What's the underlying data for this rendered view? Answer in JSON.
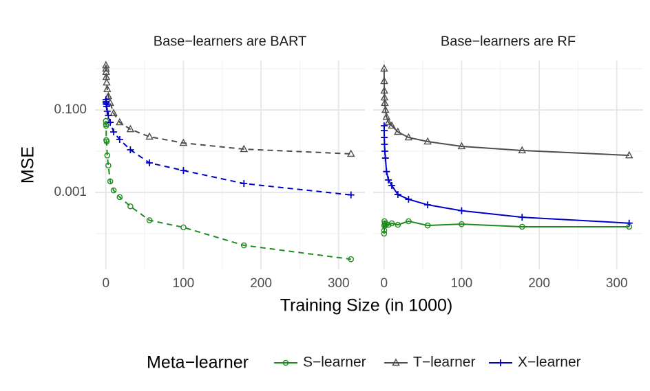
{
  "chart_data": {
    "type": "line",
    "y_label": "MSE",
    "x_label": "Training Size (in 1000)",
    "legend_title": "Meta−learner",
    "legend_position": "bottom",
    "ylog": true,
    "grid": true,
    "ylim": [
      1.36e-05,
      1.585
    ],
    "yticks": [
      {
        "value": 0.1,
        "label": "0.100"
      },
      {
        "value": 0.001,
        "label": "0.001"
      }
    ],
    "y_minor_ticks": [
      1,
      0.01,
      0.0001
    ],
    "xlim": [
      -14,
      334
    ],
    "xticks": [
      0,
      100,
      200,
      300
    ],
    "x_minor_ticks": [
      50,
      150,
      250
    ],
    "x": [
      0.1,
      0.18,
      0.32,
      0.56,
      1,
      1.78,
      3.16,
      5.62,
      10,
      17.8,
      31.6,
      56.2,
      100,
      178,
      316
    ],
    "panels": [
      {
        "title": "Base−learners are BART",
        "linestyle": "dashed",
        "series": [
          {
            "name": "S−learner",
            "color": "#1f8a1f",
            "marker": "circle",
            "values": [
              0.054,
              0.045,
              0.0414,
              0.0185,
              0.0171,
              0.0079,
              0.0045,
              0.00185,
              0.00112,
              0.00077,
              0.00046,
              0.000211,
              0.000142,
              5.2e-05,
              2.4e-05
            ]
          },
          {
            "name": "T−learner",
            "color": "#4d4d4d",
            "marker": "triangle",
            "values": [
              1.21,
              1.0,
              0.83,
              0.63,
              0.46,
              0.32,
              0.215,
              0.147,
              0.083,
              0.05,
              0.034,
              0.0224,
              0.0158,
              0.0112,
              0.0086
            ]
          },
          {
            "name": "X−learner",
            "color": "#0000c8",
            "marker": "plus",
            "values": [
              0.178,
              0.158,
              0.147,
              0.136,
              0.121,
              0.093,
              0.074,
              0.05,
              0.0293,
              0.0192,
              0.0108,
              0.0052,
              0.0034,
              0.00164,
              0.00087
            ]
          }
        ]
      },
      {
        "title": "Base−learners are RF",
        "linestyle": "solid",
        "series": [
          {
            "name": "S−learner",
            "color": "#1f8a1f",
            "marker": "circle",
            "values": [
              0.0001,
              0.00012,
              0.000158,
              0.0002,
              0.000178,
              0.000158,
              0.00017,
              0.000164,
              0.000178,
              0.000164,
              0.0002,
              0.000158,
              0.00017,
              0.000147,
              0.000147
            ]
          },
          {
            "name": "T−learner",
            "color": "#4d4d4d",
            "marker": "triangle",
            "values": [
              1.0,
              0.5,
              0.293,
              0.2,
              0.147,
              0.1,
              0.068,
              0.05,
              0.0414,
              0.0293,
              0.0215,
              0.0171,
              0.0131,
              0.0104,
              0.0079
            ]
          },
          {
            "name": "X−learner",
            "color": "#0000c8",
            "marker": "plus",
            "values": [
              0.0414,
              0.0316,
              0.0215,
              0.0147,
              0.01,
              0.0068,
              0.0032,
              0.00201,
              0.00147,
              0.00089,
              0.00068,
              0.0005,
              0.00036,
              0.00025,
              0.00018
            ]
          }
        ]
      }
    ]
  }
}
